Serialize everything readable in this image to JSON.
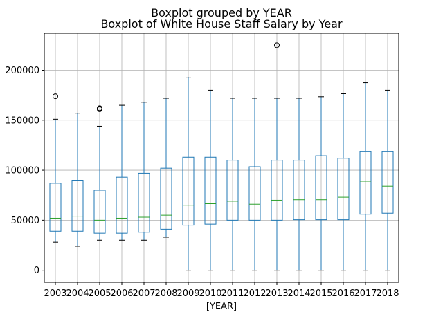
{
  "chart_data": {
    "type": "boxplot",
    "suptitle": "Boxplot grouped by YEAR",
    "title": "Boxplot of White House Staff Salary by Year",
    "xlabel": "[YEAR]",
    "ylabel": "",
    "ylim": [
      -12000,
      237000
    ],
    "yticks": [
      0,
      50000,
      100000,
      150000,
      200000
    ],
    "ytick_labels": [
      "0",
      "50000",
      "100000",
      "150000",
      "200000"
    ],
    "grid": true,
    "colors": {
      "box": "#1f77b4",
      "median": "#2ca02c",
      "whisker": "#1f77b4",
      "cap": "#000000",
      "flier": "#000000",
      "grid": "#b0b0b0"
    },
    "categories": [
      "2003",
      "2004",
      "2005",
      "2006",
      "2007",
      "2008",
      "2009",
      "2010",
      "2011",
      "2012",
      "2013",
      "2014",
      "2015",
      "2016",
      "2017",
      "2018"
    ],
    "boxes": [
      {
        "label": "2003",
        "whislo": 28000,
        "q1": 39000,
        "med": 52000,
        "q3": 87000,
        "whishi": 151000,
        "fliers": [
          174000
        ]
      },
      {
        "label": "2004",
        "whislo": 24000,
        "q1": 39000,
        "med": 54000,
        "q3": 90000,
        "whishi": 157000,
        "fliers": []
      },
      {
        "label": "2005",
        "whislo": 30000,
        "q1": 37000,
        "med": 50000,
        "q3": 80000,
        "whishi": 144000,
        "fliers": [
          161000,
          161500,
          162000
        ]
      },
      {
        "label": "2006",
        "whislo": 30000,
        "q1": 37000,
        "med": 52000,
        "q3": 93000,
        "whishi": 165000,
        "fliers": []
      },
      {
        "label": "2007",
        "whislo": 30000,
        "q1": 38000,
        "med": 53000,
        "q3": 97000,
        "whishi": 168000,
        "fliers": []
      },
      {
        "label": "2008",
        "whislo": 33000,
        "q1": 41000,
        "med": 55000,
        "q3": 102000,
        "whishi": 172000,
        "fliers": []
      },
      {
        "label": "2009",
        "whislo": 0,
        "q1": 45000,
        "med": 65000,
        "q3": 113000,
        "whishi": 193000,
        "fliers": []
      },
      {
        "label": "2010",
        "whislo": 0,
        "q1": 46000,
        "med": 66500,
        "q3": 113000,
        "whishi": 180000,
        "fliers": []
      },
      {
        "label": "2011",
        "whislo": 0,
        "q1": 50000,
        "med": 69000,
        "q3": 110000,
        "whishi": 172000,
        "fliers": []
      },
      {
        "label": "2012",
        "whislo": 0,
        "q1": 50000,
        "med": 66000,
        "q3": 103500,
        "whishi": 172000,
        "fliers": []
      },
      {
        "label": "2013",
        "whislo": 0,
        "q1": 50000,
        "med": 70000,
        "q3": 110000,
        "whishi": 172000,
        "fliers": [
          225000
        ]
      },
      {
        "label": "2014",
        "whislo": 0,
        "q1": 50500,
        "med": 70500,
        "q3": 110000,
        "whishi": 172000,
        "fliers": []
      },
      {
        "label": "2015",
        "whislo": 0,
        "q1": 50500,
        "med": 70500,
        "q3": 114500,
        "whishi": 173500,
        "fliers": []
      },
      {
        "label": "2016",
        "whislo": 0,
        "q1": 50500,
        "med": 73000,
        "q3": 112000,
        "whishi": 176500,
        "fliers": []
      },
      {
        "label": "2017",
        "whislo": 0,
        "q1": 56000,
        "med": 89000,
        "q3": 118500,
        "whishi": 187500,
        "fliers": []
      },
      {
        "label": "2018",
        "whislo": 0,
        "q1": 57000,
        "med": 84000,
        "q3": 118500,
        "whishi": 180000,
        "fliers": []
      }
    ]
  }
}
